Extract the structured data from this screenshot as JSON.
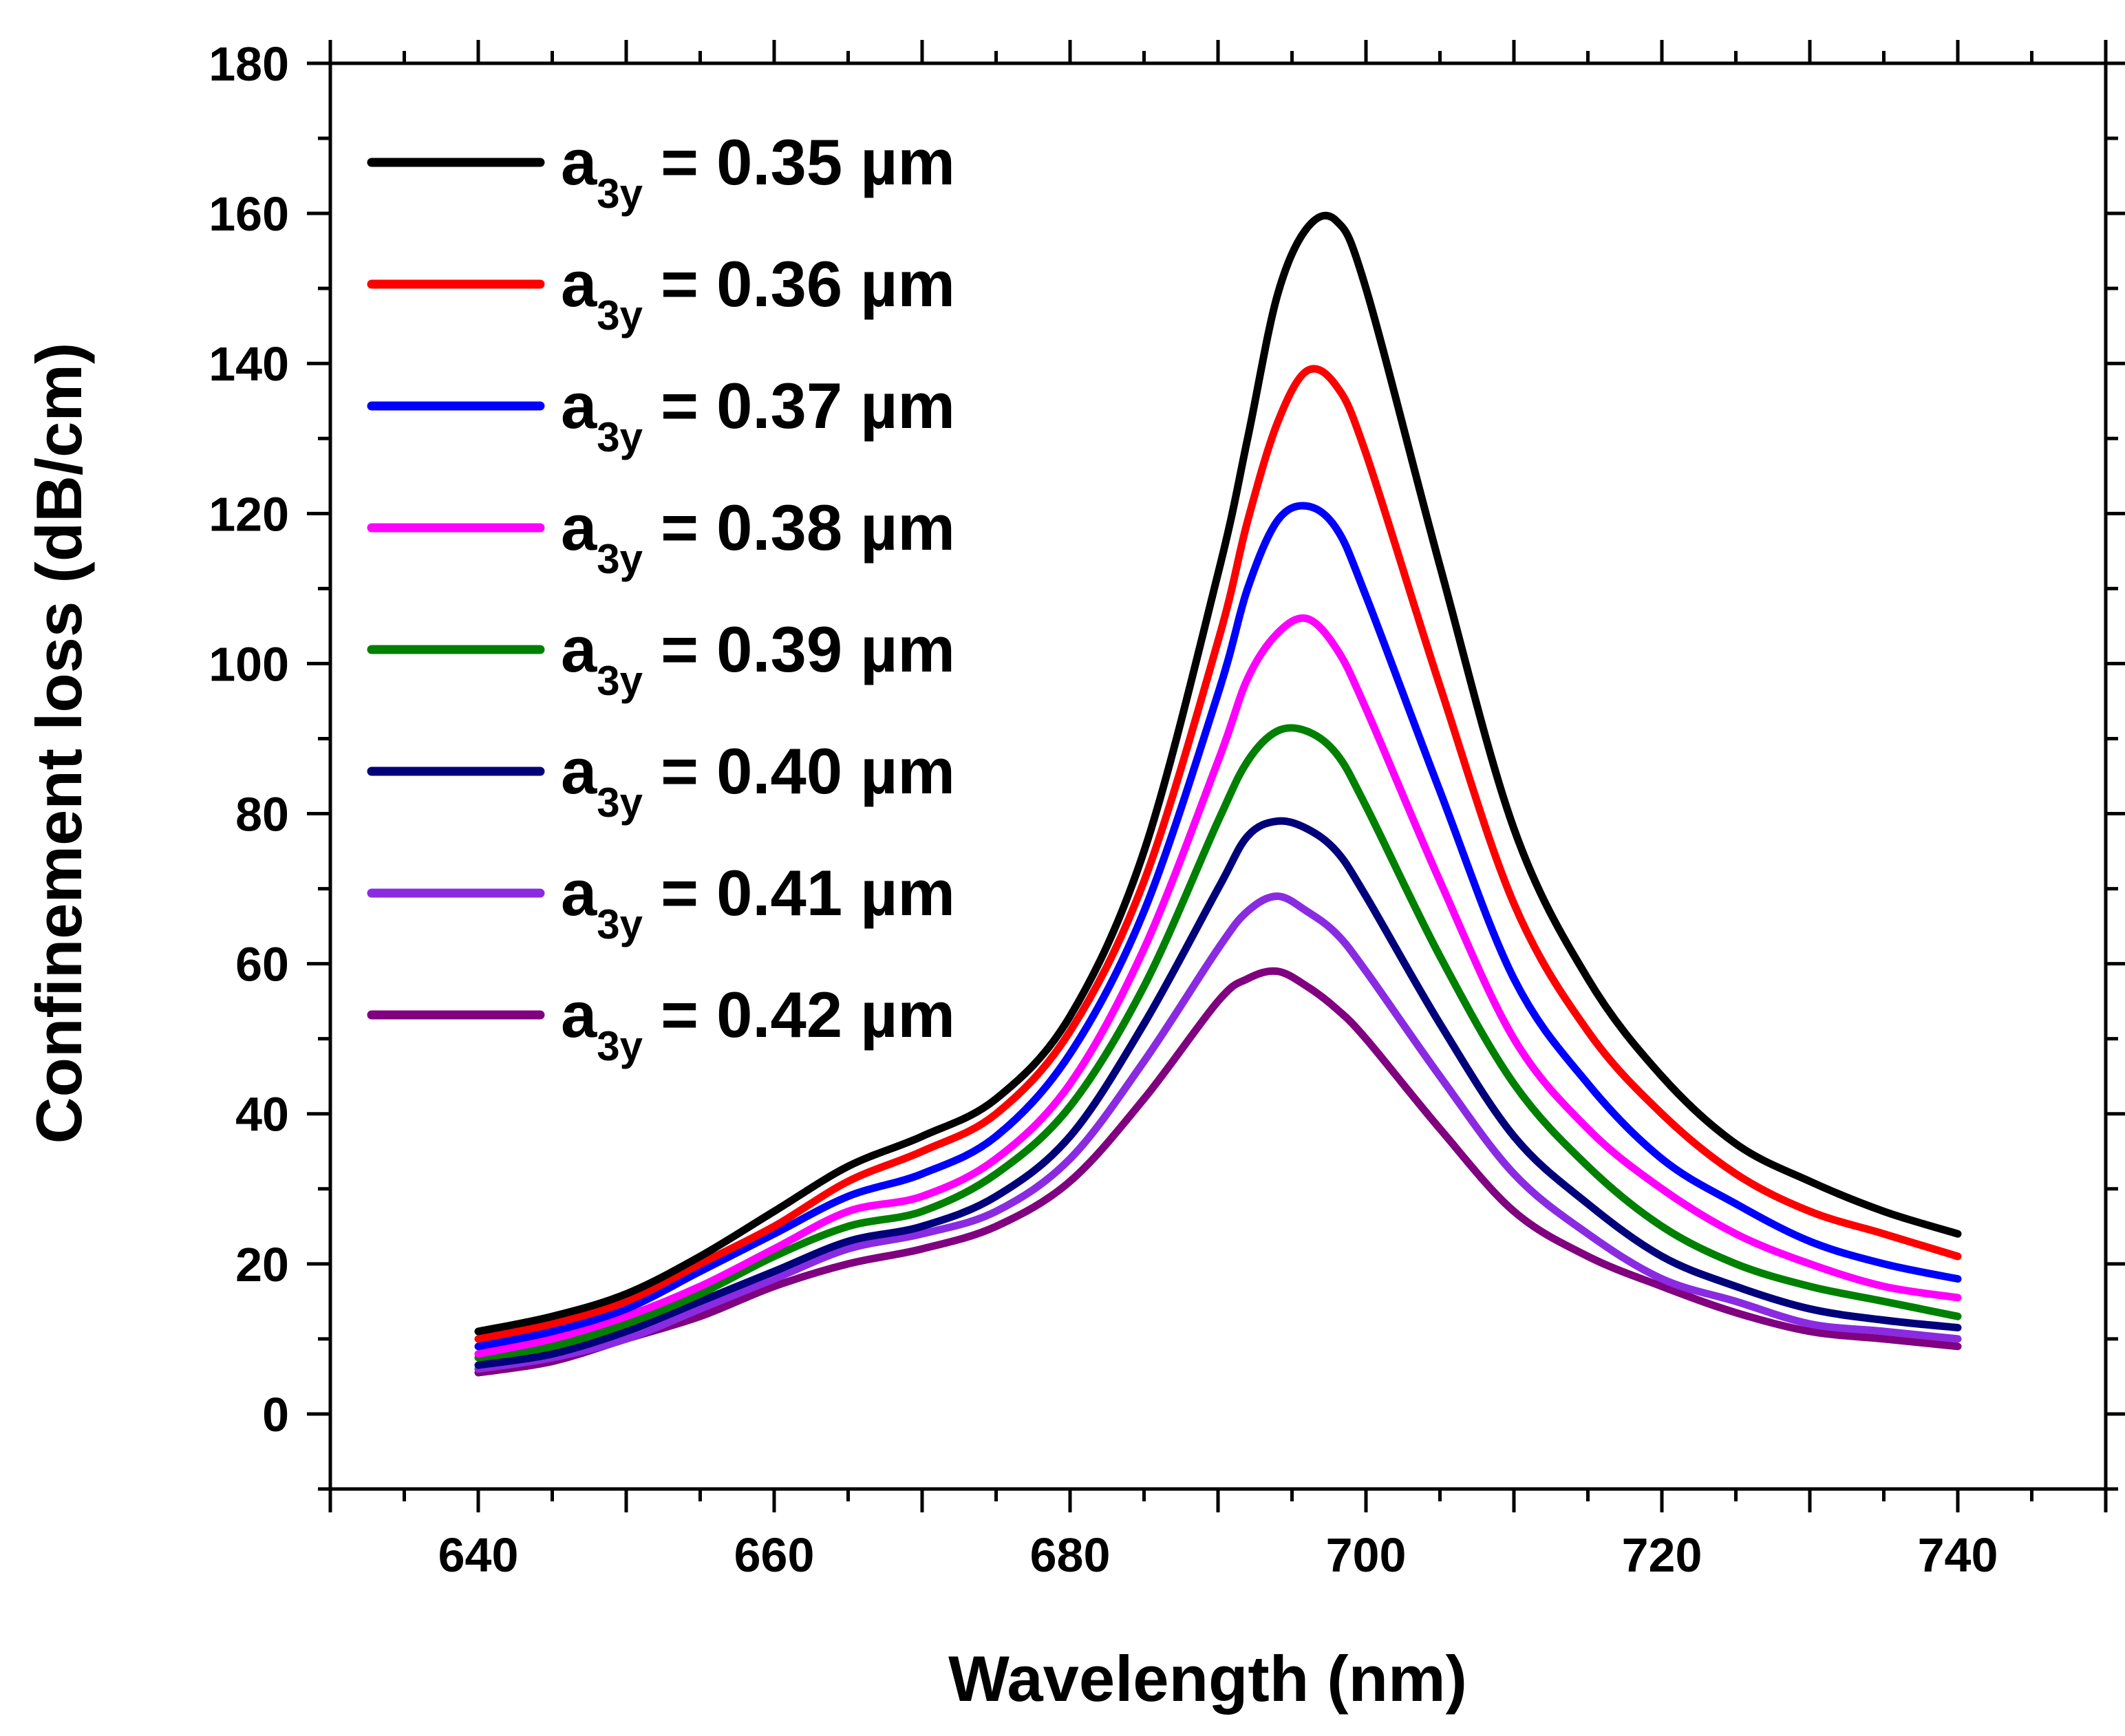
{
  "chart_data": {
    "type": "line",
    "title": "",
    "xlabel": "Wavelength (nm)",
    "ylabel": "Confinement loss (dB/cm)",
    "xlim": [
      630,
      750
    ],
    "ylim": [
      -10,
      180
    ],
    "xticks": [
      640,
      660,
      680,
      700,
      720,
      740
    ],
    "yticks": [
      0,
      20,
      40,
      60,
      80,
      100,
      120,
      140,
      160,
      180
    ],
    "grid": false,
    "legend_position": "top-left",
    "x": [
      640,
      645,
      650,
      655,
      660,
      665,
      670,
      675,
      680,
      685,
      690,
      692,
      694,
      696,
      698,
      700,
      705,
      710,
      715,
      720,
      725,
      730,
      735,
      740
    ],
    "series": [
      {
        "name": "a3y = 0.35 µm",
        "legend_main": "a",
        "legend_sub": "3y",
        "legend_rest": " = 0.35 µm",
        "color": "#000000",
        "values": [
          11,
          13,
          16,
          21,
          27,
          33,
          37,
          42,
          53,
          75,
          112,
          130,
          149,
          158,
          159,
          150,
          113,
          78,
          58,
          45,
          36,
          31,
          27,
          24
        ]
      },
      {
        "name": "a3y = 0.36 µm",
        "legend_main": "a",
        "legend_sub": "3y",
        "legend_rest": " = 0.36 µm",
        "color": "#ff0000",
        "values": [
          10,
          12,
          15,
          20,
          25,
          31,
          35,
          40,
          51,
          71,
          103,
          119,
          132,
          139,
          137,
          128,
          97,
          68,
          51,
          40,
          32,
          27,
          24,
          21
        ]
      },
      {
        "name": "a3y = 0.37 µm",
        "legend_main": "a",
        "legend_sub": "3y",
        "legend_rest": " = 0.37 µm",
        "color": "#0000ff",
        "values": [
          9,
          11,
          14,
          19,
          24,
          29,
          32,
          37,
          48,
          67,
          96,
          110,
          119,
          121,
          118,
          109,
          83,
          58,
          44,
          34,
          28,
          23,
          20,
          18
        ]
      },
      {
        "name": "a3y = 0.38 µm",
        "legend_main": "a",
        "legend_sub": "3y",
        "legend_rest": " = 0.38 µm",
        "color": "#ff00ff",
        "values": [
          8,
          10,
          13,
          17,
          22,
          27,
          29,
          34,
          44,
          62,
          87,
          98,
          104,
          106,
          102,
          94,
          71,
          50,
          38,
          30,
          24,
          20,
          17,
          15.5
        ]
      },
      {
        "name": "a3y = 0.39 µm",
        "legend_main": "a",
        "legend_sub": "3y",
        "legend_rest": " = 0.39 µm",
        "color": "#008000",
        "values": [
          7.5,
          9,
          12,
          16,
          21,
          25,
          27,
          32,
          41,
          57,
          79,
          87,
          91,
          91,
          88,
          81,
          61,
          44,
          33,
          25,
          20,
          17,
          15,
          13
        ]
      },
      {
        "name": "a3y = 0.40 µm",
        "legend_main": "a",
        "legend_sub": "3y",
        "legend_rest": " = 0.40 µm",
        "color": "#00007a",
        "values": [
          6.5,
          8,
          11,
          15,
          19,
          23,
          25,
          29,
          37,
          52,
          70,
          77,
          79,
          78,
          75,
          69,
          52,
          37,
          28,
          21,
          17,
          14,
          12.5,
          11.5
        ]
      },
      {
        "name": "a3y = 0.41 µm",
        "legend_main": "a",
        "legend_sub": "3y",
        "legend_rest": " = 0.41 µm",
        "color": "#8a2be2",
        "values": [
          6,
          7.5,
          10,
          14,
          18,
          22,
          24,
          27,
          34,
          47,
          62,
          67,
          69,
          67,
          64,
          59,
          45,
          32,
          24,
          18,
          15,
          12,
          11,
          10
        ]
      },
      {
        "name": "a3y = 0.42 µm",
        "legend_main": "a",
        "legend_sub": "3y",
        "legend_rest": " = 0.42 µm",
        "color": "#800080",
        "values": [
          5.5,
          7,
          10,
          13,
          17,
          20,
          22,
          25,
          31,
          42,
          55,
          58,
          59,
          57,
          54,
          50,
          38,
          27,
          21,
          17,
          13.5,
          11,
          10,
          9
        ]
      }
    ]
  }
}
